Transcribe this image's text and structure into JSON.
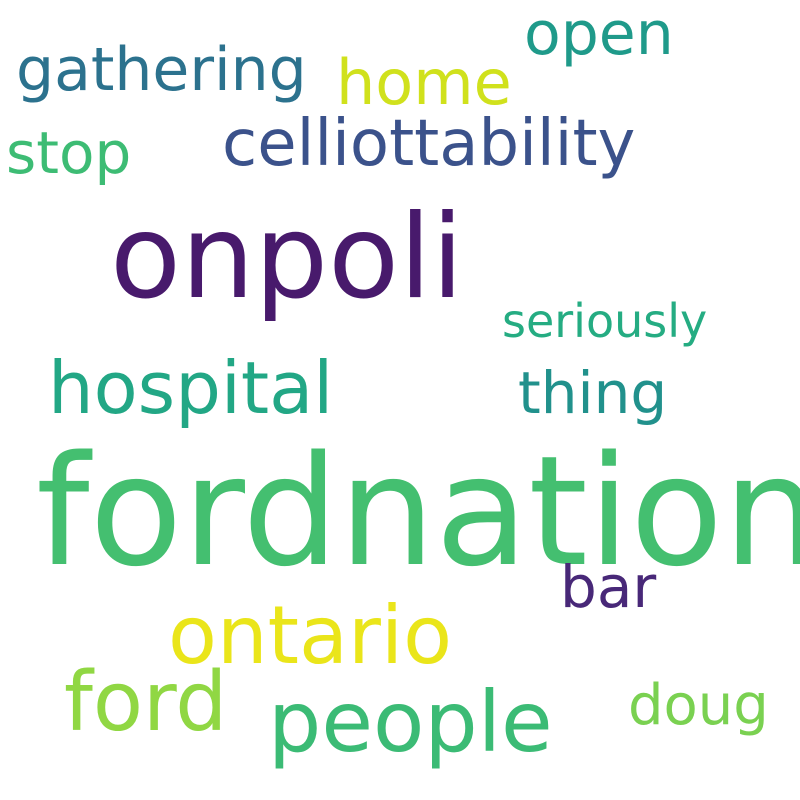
{
  "words": [
    {
      "text": "fordnation",
      "color": "#44bf70"
    },
    {
      "text": "onpoli",
      "color": "#481a6c"
    },
    {
      "text": "ontario",
      "color": "#eae51a"
    },
    {
      "text": "people",
      "color": "#3bbb75"
    },
    {
      "text": "ford",
      "color": "#90d743"
    },
    {
      "text": "hospital",
      "color": "#22a785"
    },
    {
      "text": "celliottability",
      "color": "#3b528b"
    },
    {
      "text": "gathering",
      "color": "#2c728e"
    },
    {
      "text": "home",
      "color": "#d0e11c"
    },
    {
      "text": "open",
      "color": "#1f9a8a"
    },
    {
      "text": "stop",
      "color": "#3dbc74"
    },
    {
      "text": "seriously",
      "color": "#25ac82"
    },
    {
      "text": "thing",
      "color": "#21918c"
    },
    {
      "text": "bar",
      "color": "#482878"
    },
    {
      "text": "doug",
      "color": "#7ad151"
    }
  ]
}
